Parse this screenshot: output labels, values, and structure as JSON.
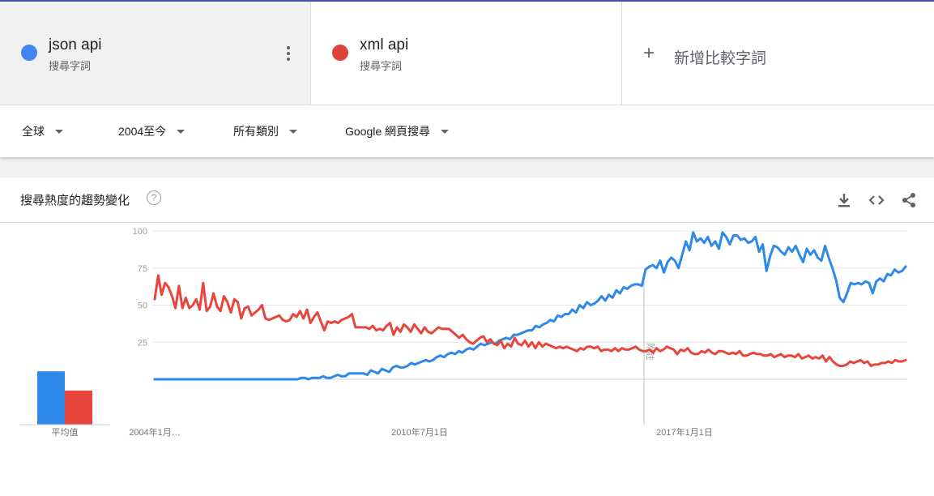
{
  "terms": [
    {
      "name": "json api",
      "subtitle": "搜尋字詞",
      "color": "#4285f4"
    },
    {
      "name": "xml api",
      "subtitle": "搜尋字詞",
      "color": "#db4437"
    }
  ],
  "add_term_label": "新增比較字詞",
  "filters": {
    "region": "全球",
    "time": "2004至今",
    "category": "所有類別",
    "search_type": "Google 網頁搜尋"
  },
  "card": {
    "title": "搜尋熱度的趨勢變化",
    "help_icon": "?",
    "icons": [
      "download-icon",
      "embed-code-icon",
      "share-icon"
    ]
  },
  "averages": {
    "label": "平均值",
    "json api": 36,
    "xml api": 23
  },
  "annotation": "附註",
  "chart_data": {
    "type": "line",
    "ylim": [
      0,
      100
    ],
    "yticks": [
      25,
      50,
      75,
      100
    ],
    "xticks": [
      "2004年1月…",
      "2010年7月1日",
      "2017年1月1日"
    ],
    "x_range": [
      "2004-01",
      "2020-05"
    ],
    "annotation_date": "2016-08",
    "series": [
      {
        "name": "json api",
        "color": "#2e89e8",
        "values": [
          0,
          0,
          0,
          0,
          0,
          0,
          0,
          0,
          0,
          0,
          0,
          0,
          0,
          0,
          0,
          0,
          0,
          0,
          0,
          0,
          0,
          0,
          0,
          0,
          0,
          0,
          0,
          0,
          0,
          0,
          0,
          0,
          0,
          0,
          0,
          0,
          0,
          0,
          0,
          0,
          1,
          1,
          0,
          1,
          1,
          1,
          2,
          1,
          1,
          2,
          3,
          2,
          2,
          4,
          4,
          4,
          4,
          4,
          3,
          6,
          5,
          4,
          7,
          6,
          5,
          8,
          9,
          8,
          8,
          9,
          11,
          10,
          11,
          12,
          13,
          12,
          13,
          15,
          16,
          15,
          17,
          18,
          17,
          19,
          18,
          20,
          21,
          20,
          22,
          24,
          23,
          24,
          25,
          24,
          26,
          27,
          28,
          27,
          30,
          30,
          31,
          32,
          33,
          33,
          36,
          35,
          37,
          38,
          40,
          39,
          43,
          42,
          44,
          44,
          47,
          45,
          50,
          48,
          52,
          50,
          51,
          53,
          56,
          53,
          57,
          55,
          60,
          58,
          62,
          61,
          63,
          64,
          64,
          63,
          74,
          76,
          77,
          75,
          80,
          72,
          79,
          82,
          80,
          75,
          84,
          93,
          87,
          99,
          93,
          95,
          92,
          96,
          90,
          93,
          88,
          99,
          96,
          91,
          97,
          97,
          94,
          95,
          92,
          93,
          96,
          86,
          91,
          73,
          83,
          90,
          89,
          86,
          84,
          89,
          86,
          90,
          84,
          79,
          88,
          84,
          87,
          82,
          80,
          90,
          82,
          75,
          67,
          55,
          52,
          58,
          65,
          64,
          65,
          64,
          66,
          65,
          58,
          66,
          68,
          66,
          71,
          70,
          74,
          72,
          73,
          76
        ]
      },
      {
        "name": "xml api",
        "color": "#e8453c",
        "values": [
          54,
          70,
          57,
          65,
          62,
          56,
          48,
          63,
          48,
          55,
          48,
          50,
          54,
          47,
          65,
          46,
          49,
          58,
          49,
          46,
          56,
          52,
          45,
          54,
          52,
          41,
          48,
          49,
          43,
          45,
          47,
          50,
          41,
          40,
          41,
          42,
          43,
          40,
          39,
          40,
          44,
          42,
          46,
          41,
          47,
          38,
          42,
          45,
          39,
          33,
          39,
          38,
          39,
          38,
          40,
          41,
          42,
          44,
          35,
          35,
          35,
          35,
          34,
          36,
          33,
          34,
          33,
          36,
          38,
          30,
          35,
          32,
          37,
          35,
          32,
          37,
          34,
          31,
          35,
          32,
          31,
          33,
          35,
          34,
          34,
          34,
          32,
          30,
          28,
          30,
          27,
          25,
          24,
          26,
          28,
          29,
          25,
          27,
          24,
          23,
          26,
          21,
          24,
          22,
          28,
          24,
          23,
          26,
          22,
          25,
          21,
          25,
          22,
          24,
          23,
          22,
          21,
          22,
          21,
          22,
          21,
          20,
          19,
          21,
          20,
          22,
          22,
          21,
          22,
          19,
          20,
          20,
          19,
          21,
          19,
          21,
          20,
          20,
          21,
          22,
          20,
          19,
          19,
          20,
          18,
          21,
          19,
          20,
          22,
          21,
          20,
          17,
          20,
          19,
          21,
          18,
          17,
          17,
          19,
          18,
          20,
          18,
          17,
          19,
          19,
          18,
          17,
          18,
          17,
          19,
          16,
          16,
          17,
          18,
          17,
          17,
          16,
          16,
          17,
          15,
          16,
          17,
          15,
          16,
          16,
          15,
          17,
          14,
          15,
          16,
          14,
          15,
          14,
          16,
          12,
          15,
          12,
          10,
          9,
          9,
          10,
          12,
          11,
          12,
          13,
          11,
          12,
          9,
          10,
          10,
          11,
          11,
          12,
          11,
          13,
          12,
          12,
          13
        ]
      }
    ]
  }
}
